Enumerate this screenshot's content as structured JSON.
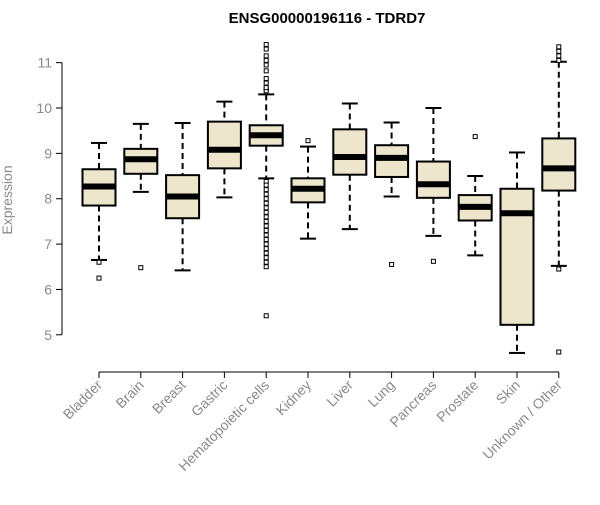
{
  "chart_data": {
    "type": "boxplot",
    "title": "ENSG00000196116 - TDRD7",
    "ylabel": "Expression",
    "xlabel": "",
    "ylim": [
      4.4,
      11.5
    ],
    "yticks": [
      5,
      6,
      7,
      8,
      9,
      10,
      11
    ],
    "grid": false,
    "colors": {
      "box_fill": "#ede6cd",
      "stroke": "#000000",
      "tick_text": "#8a8a8a"
    },
    "categories": [
      "Bladder",
      "Brain",
      "Breast",
      "Gastric",
      "Hematopoietic cells",
      "Kidney",
      "Liver",
      "Lung",
      "Pancreas",
      "Prostate",
      "Skin",
      "Unknown / Other"
    ],
    "boxes": [
      {
        "category": "Bladder",
        "whisker_low": 6.65,
        "q1": 7.85,
        "median": 8.27,
        "q3": 8.65,
        "whisker_high": 9.23,
        "outliers": [
          6.25,
          6.6
        ]
      },
      {
        "category": "Brain",
        "whisker_low": 8.15,
        "q1": 8.55,
        "median": 8.87,
        "q3": 9.1,
        "whisker_high": 9.65,
        "outliers": [
          6.48
        ]
      },
      {
        "category": "Breast",
        "whisker_low": 6.42,
        "q1": 7.57,
        "median": 8.05,
        "q3": 8.52,
        "whisker_high": 9.67,
        "outliers": []
      },
      {
        "category": "Gastric",
        "whisker_low": 8.03,
        "q1": 8.67,
        "median": 9.08,
        "q3": 9.7,
        "whisker_high": 10.14,
        "outliers": []
      },
      {
        "category": "Hematopoietic cells",
        "whisker_low": 8.45,
        "q1": 9.17,
        "median": 9.4,
        "q3": 9.62,
        "whisker_high": 10.3,
        "outliers": [
          11.4,
          11.3,
          11.15,
          11.05,
          10.95,
          10.82,
          10.65,
          10.55,
          10.42,
          10.38,
          10.45,
          8.38,
          8.3,
          8.2,
          8.1,
          8.0,
          7.9,
          7.8,
          7.7,
          7.6,
          7.5,
          7.4,
          7.3,
          7.2,
          7.1,
          7.0,
          6.9,
          6.8,
          6.7,
          6.6,
          6.5,
          5.42
        ]
      },
      {
        "category": "Kidney",
        "whisker_low": 7.12,
        "q1": 7.92,
        "median": 8.22,
        "q3": 8.45,
        "whisker_high": 9.15,
        "outliers": [
          9.28
        ]
      },
      {
        "category": "Liver",
        "whisker_low": 7.33,
        "q1": 8.53,
        "median": 8.92,
        "q3": 9.53,
        "whisker_high": 10.1,
        "outliers": []
      },
      {
        "category": "Lung",
        "whisker_low": 8.05,
        "q1": 8.48,
        "median": 8.9,
        "q3": 9.18,
        "whisker_high": 9.68,
        "outliers": [
          6.55
        ]
      },
      {
        "category": "Pancreas",
        "whisker_low": 7.18,
        "q1": 8.02,
        "median": 8.32,
        "q3": 8.82,
        "whisker_high": 10.0,
        "outliers": [
          6.62
        ]
      },
      {
        "category": "Prostate",
        "whisker_low": 6.75,
        "q1": 7.52,
        "median": 7.82,
        "q3": 8.08,
        "whisker_high": 8.5,
        "outliers": [
          9.37
        ]
      },
      {
        "category": "Skin",
        "whisker_low": 4.6,
        "q1": 5.22,
        "median": 7.68,
        "q3": 8.22,
        "whisker_high": 9.02,
        "outliers": []
      },
      {
        "category": "Unknown / Other",
        "whisker_low": 6.52,
        "q1": 8.18,
        "median": 8.67,
        "q3": 9.33,
        "whisker_high": 11.02,
        "outliers": [
          11.35,
          11.25,
          11.15,
          11.05,
          6.45,
          4.62
        ]
      }
    ]
  }
}
